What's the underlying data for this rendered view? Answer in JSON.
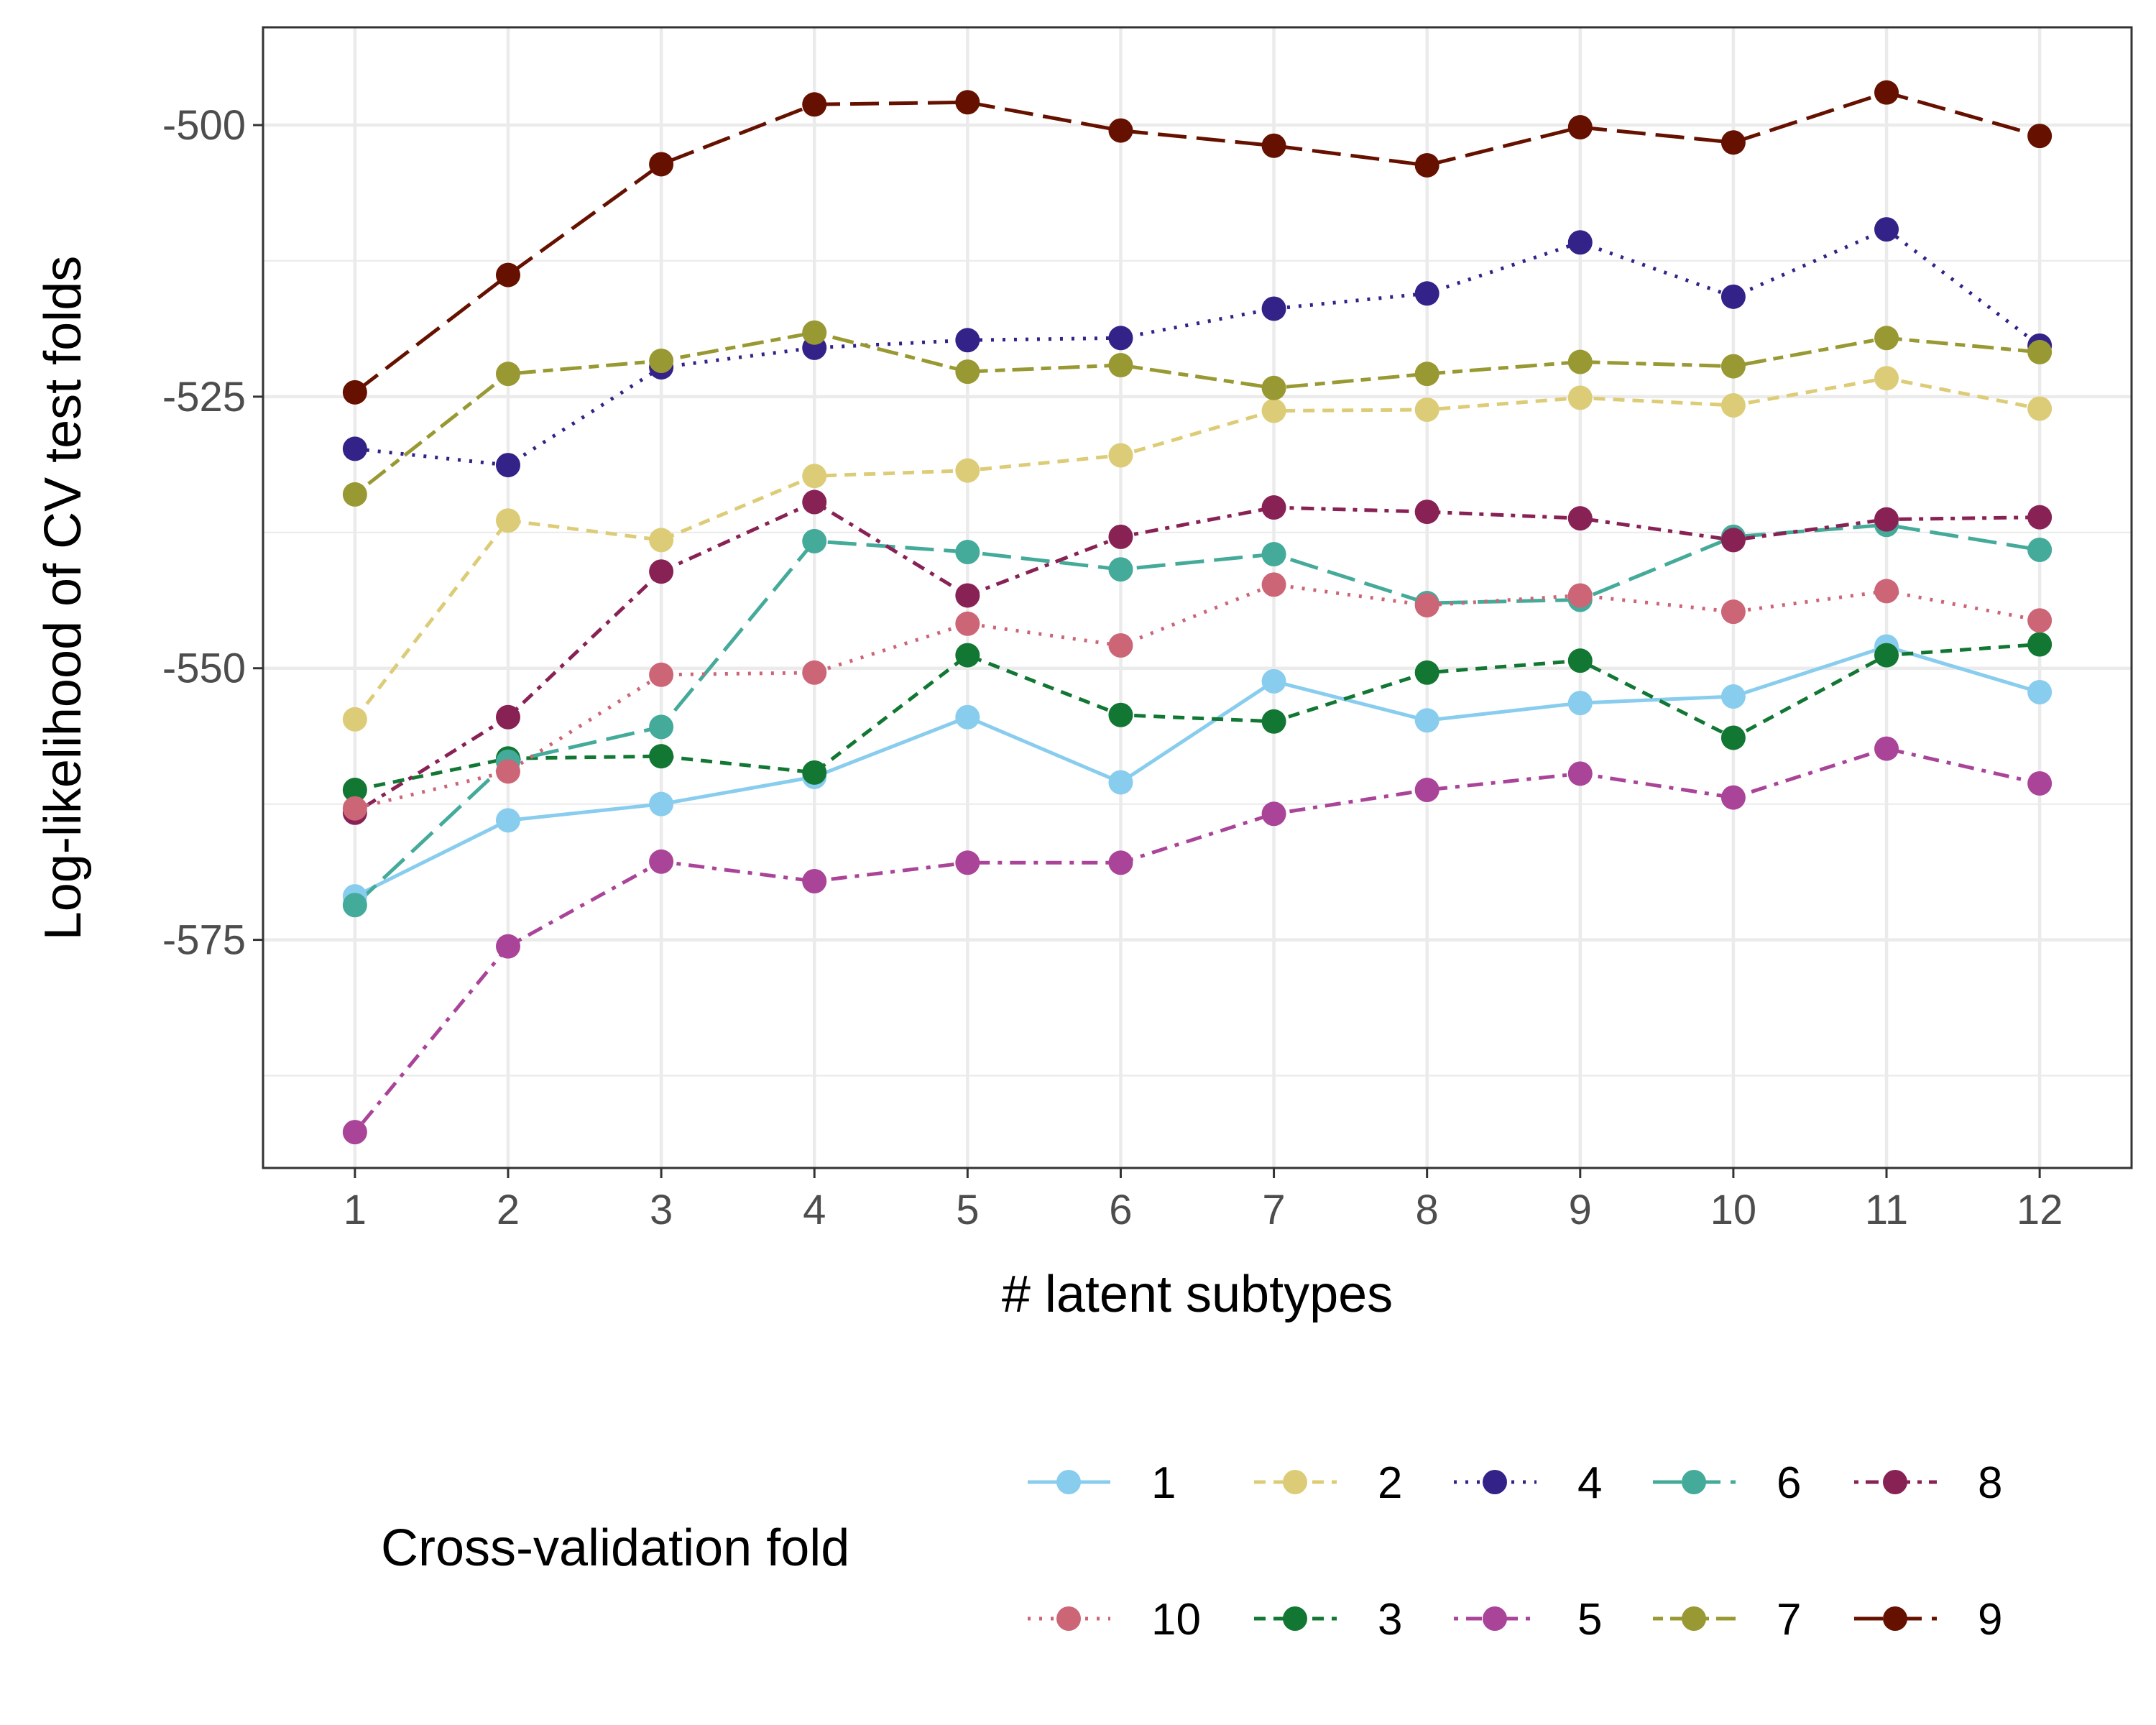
{
  "chart_data": {
    "type": "line",
    "xlabel": "# latent subtypes",
    "ylabel": "Log-likelihood of CV test folds",
    "x": [
      1,
      2,
      3,
      4,
      5,
      6,
      7,
      8,
      9,
      10,
      11,
      12
    ],
    "xlim": [
      0.4,
      12.6
    ],
    "ylim": [
      -596,
      -491
    ],
    "yticks": [
      -500,
      -525,
      -550,
      -575
    ],
    "ytick_labels": [
      "-500",
      "-525",
      "-550",
      "-575"
    ],
    "xtick_labels": [
      "1",
      "2",
      "3",
      "4",
      "5",
      "6",
      "7",
      "8",
      "9",
      "10",
      "11",
      "12"
    ],
    "grid": true,
    "legend": {
      "title": "Cross-validation fold",
      "placement": "bottom",
      "order": [
        "1",
        "2",
        "4",
        "6",
        "8",
        "10",
        "3",
        "5",
        "7",
        "9"
      ]
    },
    "series": [
      {
        "name": "1",
        "color": "#88CCEE",
        "dash": "solid",
        "values": [
          -571,
          -564,
          -562.5,
          -560,
          -554.5,
          -560.5,
          -551.2,
          -554.8,
          -553.2,
          -552.6,
          -548,
          -552.2
        ]
      },
      {
        "name": "2",
        "color": "#DDCC77",
        "dash": "dashed",
        "values": [
          -554.7,
          -536.4,
          -538.2,
          -532.3,
          -531.8,
          -530.4,
          -526.3,
          -526.2,
          -525.1,
          -525.8,
          -523.3,
          -526.1
        ]
      },
      {
        "name": "3",
        "color": "#117733",
        "dash": "dashed",
        "values": [
          -561.2,
          -558.3,
          -558.1,
          -559.6,
          -548.8,
          -554.3,
          -554.9,
          -550.4,
          -549.3,
          -556.4,
          -548.8,
          -547.8
        ]
      },
      {
        "name": "4",
        "color": "#332288",
        "dash": "dotted",
        "values": [
          -529.8,
          -531.3,
          -522.3,
          -520.5,
          -519.8,
          -519.6,
          -516.9,
          -515.5,
          -510.8,
          -515.8,
          -509.6,
          -520.3
        ]
      },
      {
        "name": "5",
        "color": "#AA4499",
        "dash": "dashdot",
        "values": [
          -592.7,
          -575.6,
          -567.8,
          -569.6,
          -567.9,
          -567.9,
          -563.4,
          -561.2,
          -559.7,
          -561.9,
          -557.4,
          -560.6
        ]
      },
      {
        "name": "6",
        "color": "#44AA99",
        "dash": "longdash",
        "values": [
          -571.8,
          -558.6,
          -555.4,
          -538.3,
          -539.3,
          -540.9,
          -539.5,
          -544,
          -543.7,
          -537.9,
          -536.8,
          -539.1
        ]
      },
      {
        "name": "7",
        "color": "#999933",
        "dash": "twodash",
        "values": [
          -534,
          -522.9,
          -521.7,
          -519.1,
          -522.7,
          -522.1,
          -524.2,
          -522.9,
          -521.8,
          -522.2,
          -519.6,
          -520.9
        ]
      },
      {
        "name": "8",
        "color": "#882255",
        "dash": "dotdash",
        "values": [
          -563.3,
          -554.5,
          -541.1,
          -534.7,
          -543.3,
          -537.9,
          -535.2,
          -535.6,
          -536.2,
          -538.2,
          -536.3,
          -536.1
        ]
      },
      {
        "name": "9",
        "color": "#661100",
        "dash": "longdash",
        "values": [
          -524.6,
          -513.8,
          -503.6,
          -498.1,
          -497.9,
          -500.5,
          -501.9,
          -503.7,
          -500.2,
          -501.6,
          -497,
          -501
        ]
      },
      {
        "name": "10",
        "color": "#CC6677",
        "dash": "dotted",
        "values": [
          -562.9,
          -559.5,
          -550.6,
          -550.4,
          -545.9,
          -547.9,
          -542.3,
          -544.2,
          -543.3,
          -544.8,
          -542.9,
          -545.6
        ]
      }
    ]
  }
}
